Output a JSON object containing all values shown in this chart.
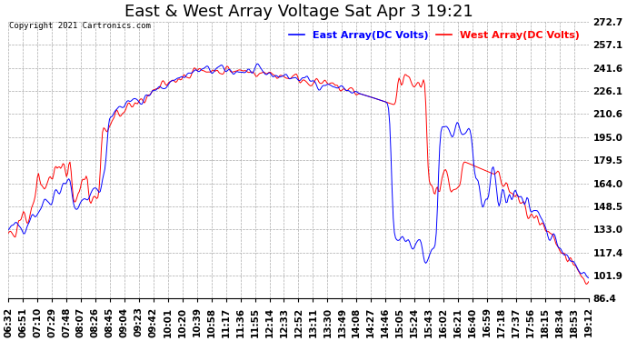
{
  "title": "East & West Array Voltage Sat Apr 3 19:21",
  "copyright": "Copyright 2021 Cartronics.com",
  "legend_east": "East Array(DC Volts)",
  "legend_west": "West Array(DC Volts)",
  "east_color": "blue",
  "west_color": "red",
  "background_color": "#ffffff",
  "grid_color": "#aaaaaa",
  "ylim": [
    86.4,
    272.7
  ],
  "yticks": [
    86.4,
    101.9,
    117.4,
    133.0,
    148.5,
    164.0,
    179.5,
    195.0,
    210.6,
    226.1,
    241.6,
    257.1,
    272.7
  ],
  "title_fontsize": 13,
  "label_fontsize": 8,
  "tick_fontsize": 7.5,
  "xtick_labels": [
    "06:32",
    "06:51",
    "07:10",
    "07:29",
    "07:48",
    "08:07",
    "08:26",
    "08:45",
    "09:04",
    "09:23",
    "09:42",
    "10:01",
    "10:20",
    "10:39",
    "10:58",
    "11:17",
    "11:36",
    "11:55",
    "12:14",
    "12:33",
    "12:52",
    "13:11",
    "13:30",
    "13:49",
    "14:08",
    "14:27",
    "14:46",
    "15:05",
    "15:24",
    "15:43",
    "16:02",
    "16:21",
    "16:40",
    "16:59",
    "17:18",
    "17:37",
    "17:56",
    "18:15",
    "18:34",
    "18:53",
    "19:12"
  ]
}
